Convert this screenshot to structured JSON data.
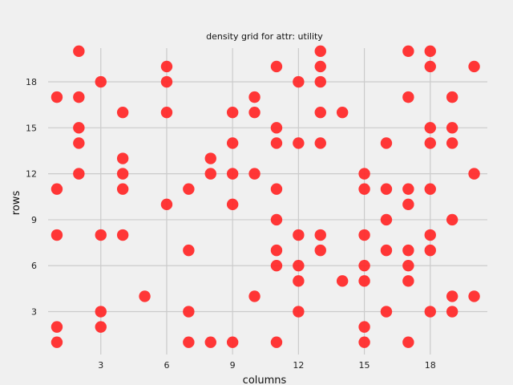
{
  "chart_data": {
    "type": "scatter",
    "title": "density grid for attr: utility",
    "xlabel": "columns",
    "ylabel": "rows",
    "xlim": [
      0.6,
      20.6
    ],
    "ylim": [
      0.2,
      20.2
    ],
    "xticks": [
      3,
      6,
      9,
      12,
      15,
      18
    ],
    "yticks": [
      3,
      6,
      9,
      12,
      15,
      18
    ],
    "grid": true,
    "marker_color": "#ff2b2b",
    "points": [
      [
        1,
        17
      ],
      [
        1,
        11
      ],
      [
        1,
        8
      ],
      [
        1,
        2
      ],
      [
        1,
        1
      ],
      [
        2,
        20
      ],
      [
        2,
        17
      ],
      [
        2,
        15
      ],
      [
        2,
        14
      ],
      [
        2,
        12
      ],
      [
        3,
        18
      ],
      [
        3,
        8
      ],
      [
        3,
        3
      ],
      [
        3,
        2
      ],
      [
        4,
        16
      ],
      [
        4,
        13
      ],
      [
        4,
        12
      ],
      [
        4,
        11
      ],
      [
        4,
        8
      ],
      [
        5,
        4
      ],
      [
        6,
        19
      ],
      [
        6,
        18
      ],
      [
        6,
        16
      ],
      [
        6,
        10
      ],
      [
        7,
        11
      ],
      [
        7,
        7
      ],
      [
        7,
        3
      ],
      [
        7,
        1
      ],
      [
        8,
        13
      ],
      [
        8,
        12
      ],
      [
        8,
        1
      ],
      [
        9,
        16
      ],
      [
        9,
        14
      ],
      [
        9,
        12
      ],
      [
        9,
        10
      ],
      [
        9,
        1
      ],
      [
        10,
        17
      ],
      [
        10,
        16
      ],
      [
        10,
        12
      ],
      [
        10,
        4
      ],
      [
        11,
        19
      ],
      [
        11,
        15
      ],
      [
        11,
        14
      ],
      [
        11,
        11
      ],
      [
        11,
        9
      ],
      [
        11,
        7
      ],
      [
        11,
        6
      ],
      [
        11,
        1
      ],
      [
        12,
        18
      ],
      [
        12,
        14
      ],
      [
        12,
        8
      ],
      [
        12,
        6
      ],
      [
        12,
        5
      ],
      [
        12,
        3
      ],
      [
        13,
        20
      ],
      [
        13,
        19
      ],
      [
        13,
        18
      ],
      [
        13,
        16
      ],
      [
        13,
        14
      ],
      [
        13,
        8
      ],
      [
        13,
        7
      ],
      [
        14,
        16
      ],
      [
        14,
        5
      ],
      [
        15,
        12
      ],
      [
        15,
        11
      ],
      [
        15,
        8
      ],
      [
        15,
        6
      ],
      [
        15,
        5
      ],
      [
        15,
        2
      ],
      [
        15,
        1
      ],
      [
        16,
        14
      ],
      [
        16,
        11
      ],
      [
        16,
        9
      ],
      [
        16,
        7
      ],
      [
        16,
        3
      ],
      [
        17,
        20
      ],
      [
        17,
        17
      ],
      [
        17,
        11
      ],
      [
        17,
        10
      ],
      [
        17,
        7
      ],
      [
        17,
        6
      ],
      [
        17,
        5
      ],
      [
        17,
        1
      ],
      [
        18,
        20
      ],
      [
        18,
        19
      ],
      [
        18,
        15
      ],
      [
        18,
        14
      ],
      [
        18,
        11
      ],
      [
        18,
        8
      ],
      [
        18,
        7
      ],
      [
        18,
        3
      ],
      [
        19,
        17
      ],
      [
        19,
        15
      ],
      [
        19,
        14
      ],
      [
        19,
        9
      ],
      [
        19,
        4
      ],
      [
        19,
        3
      ],
      [
        20,
        19
      ],
      [
        20,
        12
      ],
      [
        20,
        4
      ]
    ]
  }
}
